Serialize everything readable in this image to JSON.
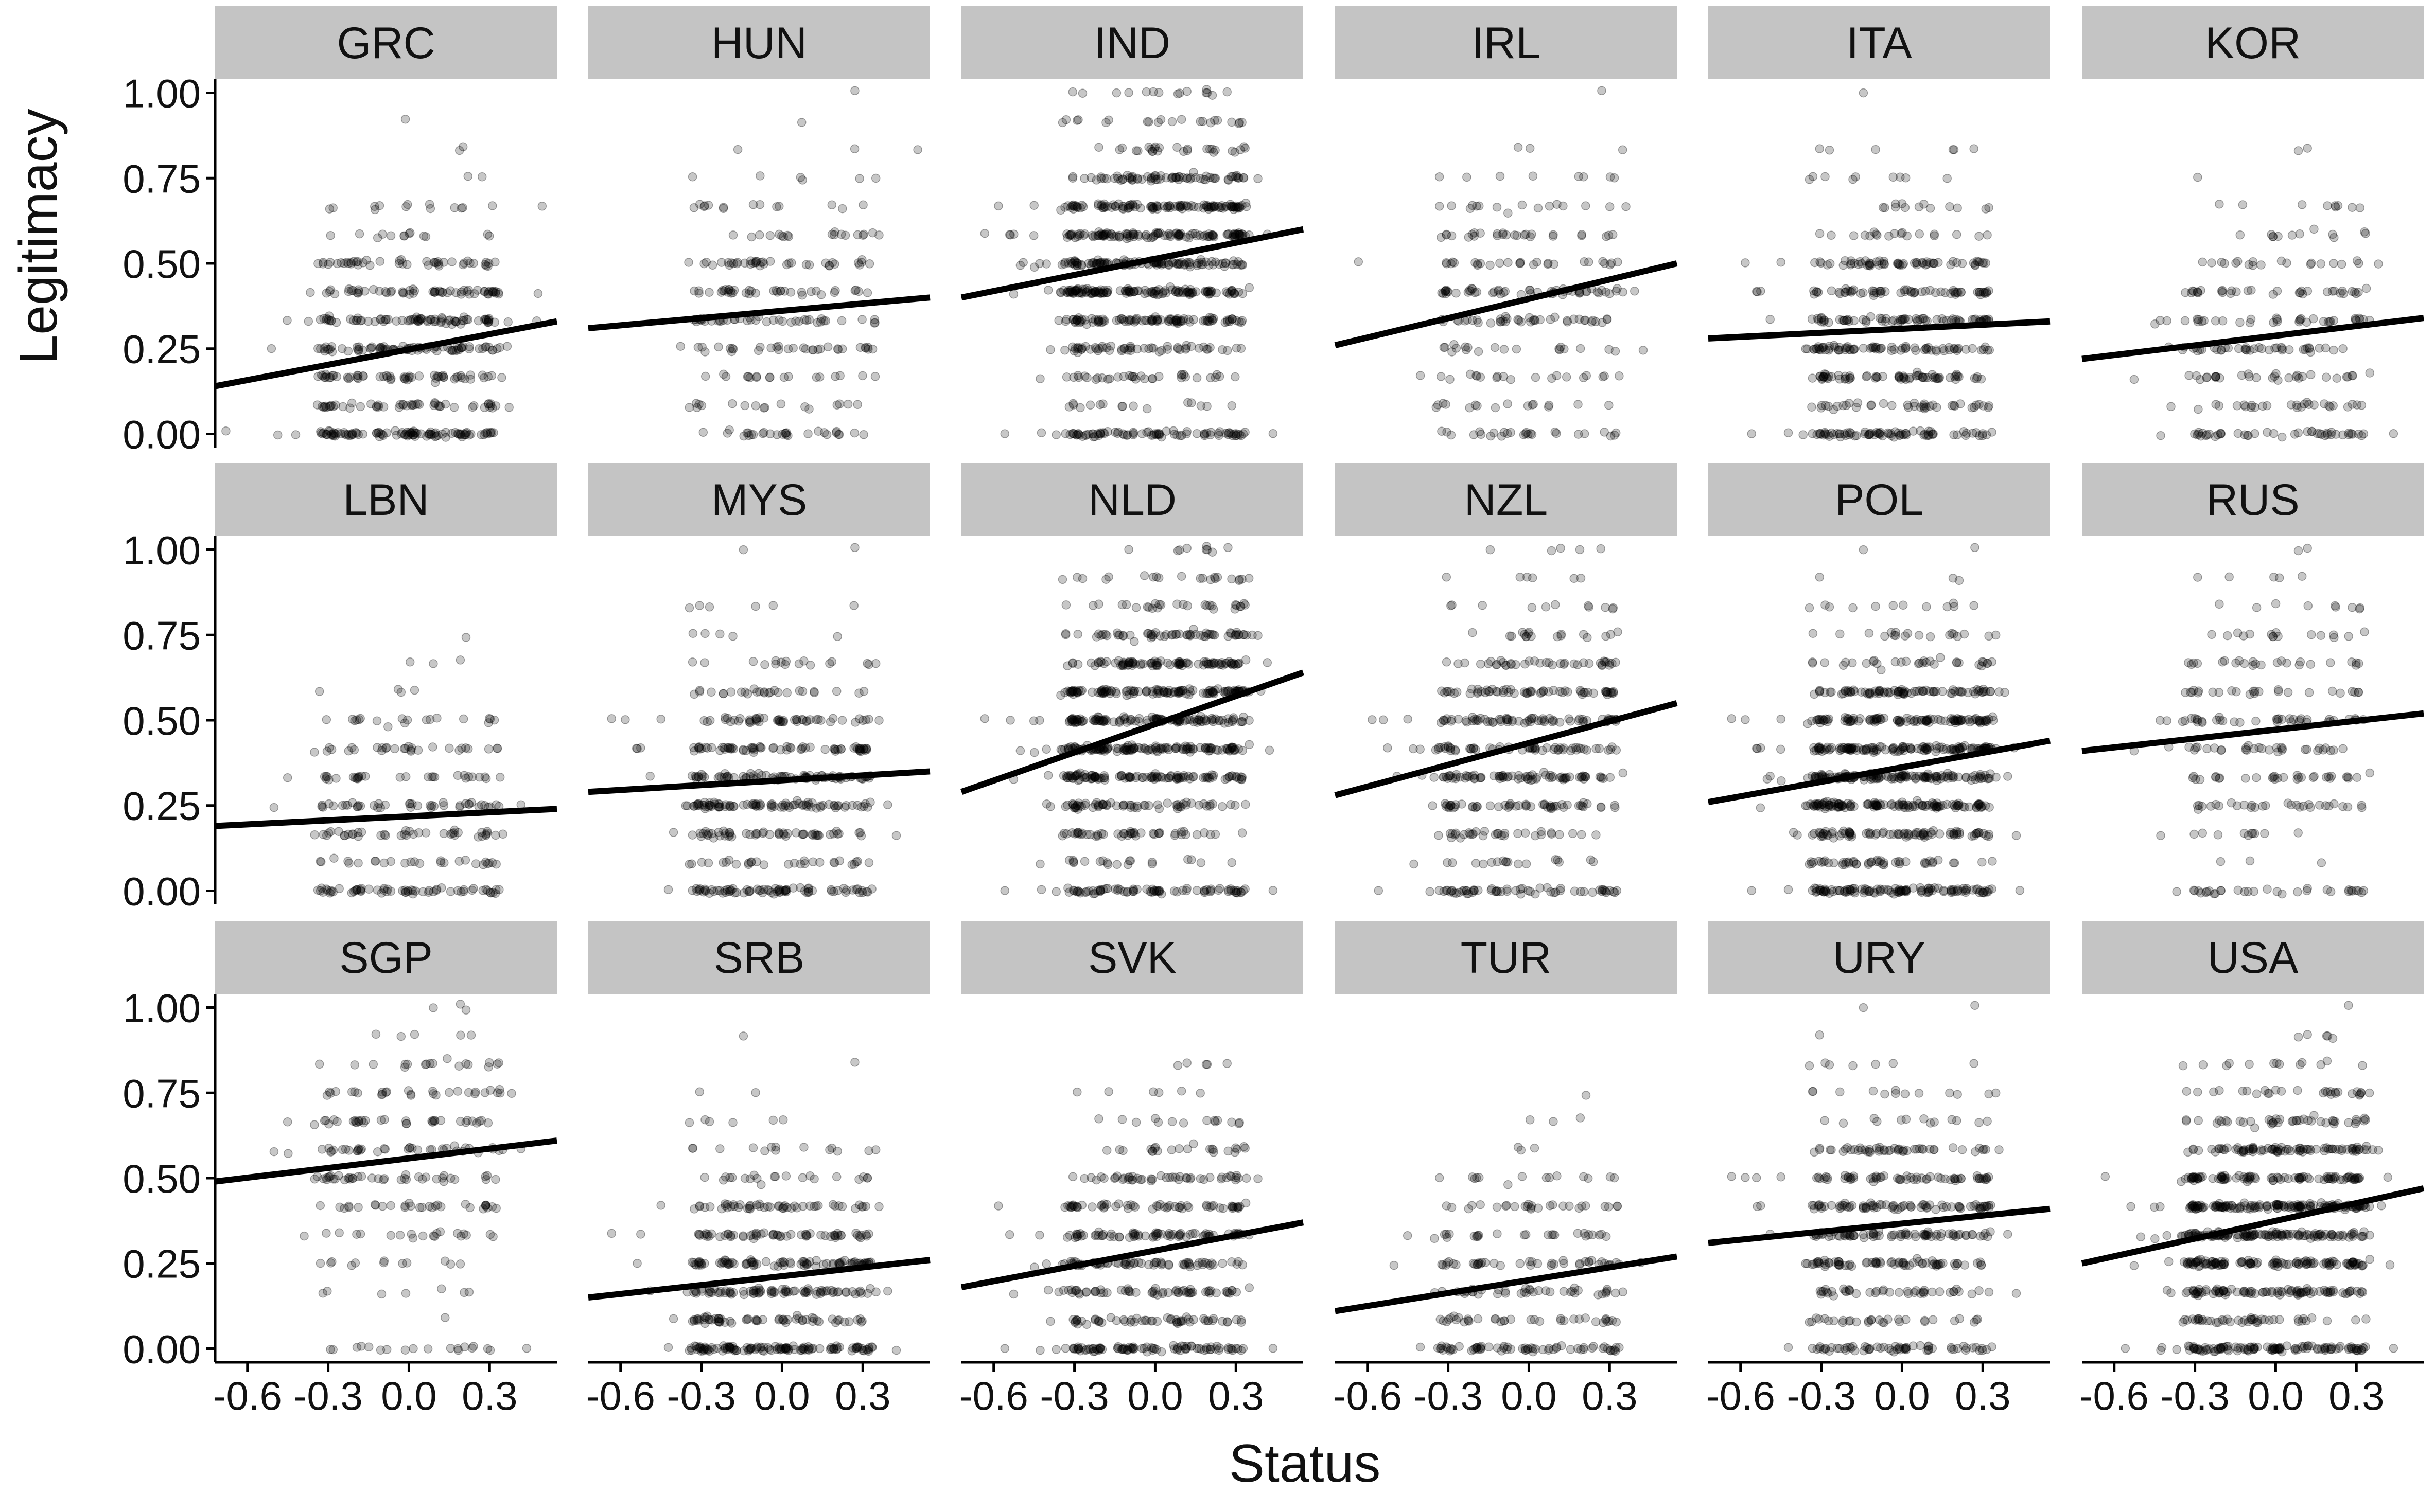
{
  "chart_data": {
    "type": "scatter",
    "facet_layout": "3 rows x 6 columns",
    "xlabel": "Status",
    "ylabel": "Legitimacy",
    "x_ticks": [
      -0.6,
      -0.3,
      0.0,
      0.3
    ],
    "x_tick_labels": [
      "-0.6",
      "-0.3",
      "0.0",
      "0.3"
    ],
    "y_ticks": [
      0.0,
      0.25,
      0.5,
      0.75,
      1.0
    ],
    "y_tick_labels": [
      "0.00",
      "0.25",
      "0.50",
      "0.75",
      "1.00"
    ],
    "xlim": [
      -0.72,
      0.55
    ],
    "ylim": [
      -0.04,
      1.04
    ],
    "grid": false,
    "point_color": "#000000",
    "point_opacity": 0.22,
    "strip_color": "#c4c4c4",
    "line_color": "#000000",
    "note": "Point clouds are jittered survey responses; fit lines are linear fits read from the figure (y at x=-0.72 and x=0.55).",
    "panels": [
      {
        "label": "GRC",
        "fit": [
          [
            -0.72,
            0.14
          ],
          [
            0.55,
            0.33
          ]
        ],
        "density": "medium"
      },
      {
        "label": "HUN",
        "fit": [
          [
            -0.72,
            0.31
          ],
          [
            0.55,
            0.4
          ]
        ],
        "density": "low"
      },
      {
        "label": "IND",
        "fit": [
          [
            -0.72,
            0.4
          ],
          [
            0.55,
            0.6
          ]
        ],
        "density": "high"
      },
      {
        "label": "IRL",
        "fit": [
          [
            -0.72,
            0.26
          ],
          [
            0.55,
            0.5
          ]
        ],
        "density": "low"
      },
      {
        "label": "ITA",
        "fit": [
          [
            -0.72,
            0.28
          ],
          [
            0.55,
            0.33
          ]
        ],
        "density": "medium"
      },
      {
        "label": "KOR",
        "fit": [
          [
            -0.72,
            0.22
          ],
          [
            0.55,
            0.34
          ]
        ],
        "density": "low"
      },
      {
        "label": "LBN",
        "fit": [
          [
            -0.72,
            0.19
          ],
          [
            0.55,
            0.24
          ]
        ],
        "density": "low"
      },
      {
        "label": "MYS",
        "fit": [
          [
            -0.72,
            0.29
          ],
          [
            0.55,
            0.35
          ]
        ],
        "density": "medium"
      },
      {
        "label": "NLD",
        "fit": [
          [
            -0.72,
            0.29
          ],
          [
            0.55,
            0.64
          ]
        ],
        "density": "high"
      },
      {
        "label": "NZL",
        "fit": [
          [
            -0.72,
            0.28
          ],
          [
            0.55,
            0.55
          ]
        ],
        "density": "medium"
      },
      {
        "label": "POL",
        "fit": [
          [
            -0.72,
            0.26
          ],
          [
            0.55,
            0.44
          ]
        ],
        "density": "high"
      },
      {
        "label": "RUS",
        "fit": [
          [
            -0.72,
            0.41
          ],
          [
            0.55,
            0.52
          ]
        ],
        "density": "low"
      },
      {
        "label": "SGP",
        "fit": [
          [
            -0.72,
            0.49
          ],
          [
            0.55,
            0.61
          ]
        ],
        "density": "low"
      },
      {
        "label": "SRB",
        "fit": [
          [
            -0.72,
            0.15
          ],
          [
            0.55,
            0.26
          ]
        ],
        "density": "medium"
      },
      {
        "label": "SVK",
        "fit": [
          [
            -0.72,
            0.18
          ],
          [
            0.55,
            0.37
          ]
        ],
        "density": "medium"
      },
      {
        "label": "TUR",
        "fit": [
          [
            -0.72,
            0.11
          ],
          [
            0.55,
            0.27
          ]
        ],
        "density": "low"
      },
      {
        "label": "URY",
        "fit": [
          [
            -0.72,
            0.31
          ],
          [
            0.55,
            0.41
          ]
        ],
        "density": "medium"
      },
      {
        "label": "USA",
        "fit": [
          [
            -0.72,
            0.25
          ],
          [
            0.55,
            0.47
          ]
        ],
        "density": "high"
      }
    ]
  }
}
